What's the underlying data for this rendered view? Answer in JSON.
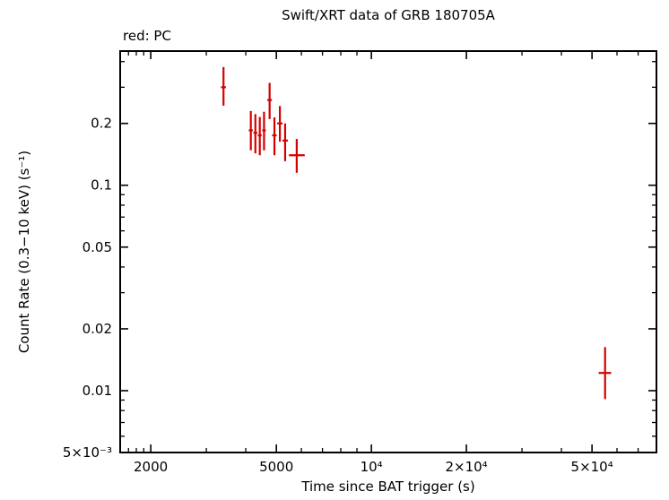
{
  "chart_data": {
    "type": "scatter",
    "title": "Swift/XRT data of GRB 180705A",
    "mode_label": "red: PC",
    "xlabel": "Time since BAT trigger (s)",
    "ylabel": "Count Rate (0.3−10 keV) (s⁻¹)",
    "x_scale": "log",
    "y_scale": "log",
    "xlim": [
      1600,
      80000
    ],
    "ylim": [
      0.005,
      0.45
    ],
    "grid": false,
    "legend": "none",
    "axis_color": "#000000",
    "x_ticks": [
      {
        "v": 2000,
        "label": "2000"
      },
      {
        "v": 5000,
        "label": "5000"
      },
      {
        "v": 10000,
        "label": "10⁴"
      },
      {
        "v": 20000,
        "label": "2×10⁴"
      },
      {
        "v": 50000,
        "label": "5×10⁴"
      }
    ],
    "x_minor_ticks": [
      1700,
      1800,
      1900,
      3000,
      4000,
      6000,
      7000,
      8000,
      9000,
      30000,
      40000,
      60000,
      70000
    ],
    "y_ticks": [
      {
        "v": 0.005,
        "label": "5×10⁻³"
      },
      {
        "v": 0.01,
        "label": "0.01"
      },
      {
        "v": 0.02,
        "label": "0.02"
      },
      {
        "v": 0.05,
        "label": "0.05"
      },
      {
        "v": 0.1,
        "label": "0.1"
      },
      {
        "v": 0.2,
        "label": "0.2"
      }
    ],
    "y_minor_ticks": [
      0.006,
      0.007,
      0.008,
      0.009,
      0.03,
      0.04,
      0.06,
      0.07,
      0.08,
      0.09,
      0.3,
      0.4
    ],
    "series": [
      {
        "name": "PC",
        "color": "#d40000",
        "marker": "error-cross",
        "points": [
          {
            "t": 3400,
            "t_lo": 3340,
            "t_hi": 3460,
            "rate": 0.3,
            "rate_lo": 0.244,
            "rate_hi": 0.376
          },
          {
            "t": 4150,
            "t_lo": 4090,
            "t_hi": 4210,
            "rate": 0.185,
            "rate_lo": 0.148,
            "rate_hi": 0.23
          },
          {
            "t": 4290,
            "t_lo": 4230,
            "t_hi": 4350,
            "rate": 0.18,
            "rate_lo": 0.143,
            "rate_hi": 0.222
          },
          {
            "t": 4430,
            "t_lo": 4370,
            "t_hi": 4490,
            "rate": 0.175,
            "rate_lo": 0.14,
            "rate_hi": 0.215
          },
          {
            "t": 4570,
            "t_lo": 4510,
            "t_hi": 4630,
            "rate": 0.185,
            "rate_lo": 0.148,
            "rate_hi": 0.228
          },
          {
            "t": 4760,
            "t_lo": 4680,
            "t_hi": 4840,
            "rate": 0.26,
            "rate_lo": 0.21,
            "rate_hi": 0.315
          },
          {
            "t": 4930,
            "t_lo": 4850,
            "t_hi": 5010,
            "rate": 0.175,
            "rate_lo": 0.14,
            "rate_hi": 0.214
          },
          {
            "t": 5130,
            "t_lo": 5030,
            "t_hi": 5230,
            "rate": 0.2,
            "rate_lo": 0.163,
            "rate_hi": 0.243
          },
          {
            "t": 5330,
            "t_lo": 5230,
            "t_hi": 5440,
            "rate": 0.165,
            "rate_lo": 0.131,
            "rate_hi": 0.2
          },
          {
            "t": 5800,
            "t_lo": 5480,
            "t_hi": 6150,
            "rate": 0.14,
            "rate_lo": 0.115,
            "rate_hi": 0.168
          },
          {
            "t": 55000,
            "t_lo": 52500,
            "t_hi": 57500,
            "rate": 0.0122,
            "rate_lo": 0.0091,
            "rate_hi": 0.0163
          }
        ]
      }
    ]
  }
}
